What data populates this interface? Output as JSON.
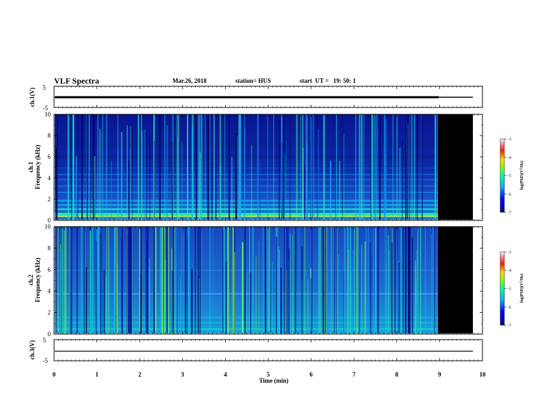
{
  "header": {
    "title": "VLF Spectra",
    "date": "Mar.26, 2018",
    "station": "station= HUS",
    "start": "start  UT =   19: 50: 1"
  },
  "chart_data": [
    {
      "type": "line",
      "panel": "ch1-waveform",
      "ylabel": "ch.1(V)",
      "ylim": [
        -5,
        5
      ],
      "yticks": [
        "5",
        "-5"
      ],
      "xlim": [
        0,
        10
      ],
      "series": [
        {
          "x": [
            0,
            9,
            9.83
          ],
          "y": [
            0,
            0,
            0
          ]
        }
      ]
    },
    {
      "type": "heatmap",
      "panel": "ch1-spectrogram",
      "ylabel": "ch.1\nFrequency (kHz)",
      "ylabel_lines": [
        "ch.1",
        "Frequency (kHz)"
      ],
      "ylim": [
        0,
        10
      ],
      "yticks": [
        "0",
        "2",
        "4",
        "6",
        "8",
        "10"
      ],
      "xlim": [
        0,
        10
      ],
      "data_end_min": 9.0,
      "record_end_min": 9.83,
      "colorbar": {
        "label": "log(PSD)(V^2/Hz)",
        "label_parts": [
          "log(PSD)(V",
          "2",
          "/Hz)"
        ],
        "range": [
          -7,
          -3
        ],
        "ticks": [
          "-3",
          "-4",
          "-5",
          "-6",
          "-7"
        ]
      }
    },
    {
      "type": "heatmap",
      "panel": "ch2-spectrogram",
      "ylabel": "ch.2\nFrequency (kHz)",
      "ylabel_lines": [
        "ch.2",
        "Frequency (kHz)"
      ],
      "ylim": [
        0,
        10
      ],
      "yticks": [
        "0",
        "2",
        "4",
        "6",
        "8",
        "10"
      ],
      "xlim": [
        0,
        10
      ],
      "data_end_min": 9.0,
      "record_end_min": 9.83,
      "colorbar": {
        "label": "log(PSD)(V^2/Hz)",
        "label_parts": [
          "log(PSD)(V",
          "2",
          "/Hz)"
        ],
        "range": [
          -7,
          -3
        ],
        "ticks": [
          "-3",
          "-4",
          "-5",
          "-6",
          "-7"
        ]
      }
    },
    {
      "type": "line",
      "panel": "ch3-waveform",
      "ylabel": "ch.3(V)",
      "ylim": [
        -5,
        5
      ],
      "yticks": [
        "5",
        "-5"
      ],
      "xlim": [
        0,
        10
      ],
      "series": [
        {
          "x": [
            0,
            9.83
          ],
          "y": [
            -1.5,
            -1.5
          ]
        }
      ]
    }
  ],
  "xaxis": {
    "label": "Time (min)",
    "ticks": [
      "0",
      "1",
      "2",
      "3",
      "4",
      "5",
      "6",
      "7",
      "8",
      "9",
      "10"
    ]
  },
  "colors": {
    "background": "#ffffff",
    "axis": "#000000",
    "empty": "#000000"
  }
}
